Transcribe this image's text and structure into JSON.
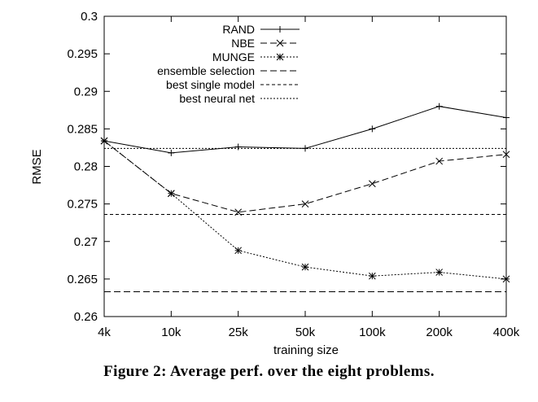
{
  "caption": "Figure 2: Average perf. over the eight problems.",
  "chart_data": {
    "type": "line",
    "title": "",
    "xlabel": "training size",
    "ylabel": "RMSE",
    "categories": [
      "4k",
      "10k",
      "25k",
      "50k",
      "100k",
      "200k",
      "400k"
    ],
    "ylim": [
      0.26,
      0.3
    ],
    "yticks": [
      "0.26",
      "0.265",
      "0.27",
      "0.275",
      "0.28",
      "0.285",
      "0.29",
      "0.295",
      "0.3"
    ],
    "grid": false,
    "legend_position": "top-right",
    "series": [
      {
        "name": "RAND",
        "values": [
          0.2834,
          0.2818,
          0.2826,
          0.2824,
          0.285,
          0.288,
          0.2865
        ],
        "line": "solid",
        "marker": "+"
      },
      {
        "name": "NBE",
        "values": [
          0.2834,
          0.2764,
          0.2739,
          0.275,
          0.2777,
          0.2807,
          0.2816
        ],
        "line": "dashed",
        "marker": "x"
      },
      {
        "name": "MUNGE",
        "values": [
          0.2834,
          0.2764,
          0.2688,
          0.2666,
          0.2654,
          0.2659,
          0.265
        ],
        "line": "dotted",
        "marker": "*"
      }
    ],
    "reference_lines": [
      {
        "name": "ensemble selection",
        "value": 0.2633,
        "line": "dashed"
      },
      {
        "name": "best single model",
        "value": 0.2736,
        "line": "fine-dashed"
      },
      {
        "name": "best neural net",
        "value": 0.2824,
        "line": "dotted"
      }
    ]
  }
}
